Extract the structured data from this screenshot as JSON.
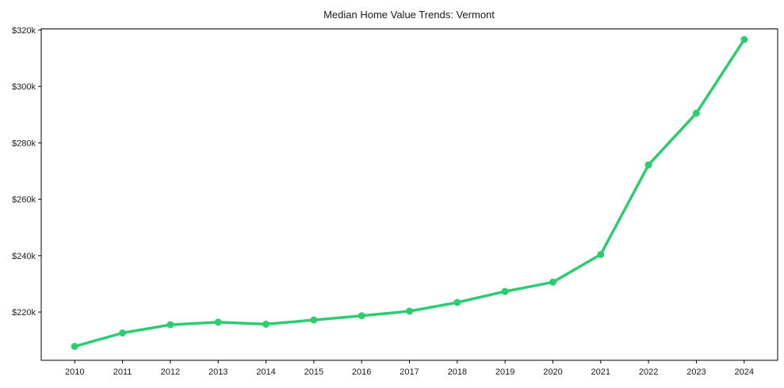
{
  "chart_data": {
    "type": "line",
    "title": "Median Home Value Trends: Vermont",
    "xlabel": "",
    "ylabel": "",
    "x": [
      2010,
      2011,
      2012,
      2013,
      2014,
      2015,
      2016,
      2017,
      2018,
      2019,
      2020,
      2021,
      2022,
      2023,
      2024
    ],
    "x_tick_labels": [
      "2010",
      "2011",
      "2012",
      "2013",
      "2014",
      "2015",
      "2016",
      "2017",
      "2018",
      "2019",
      "2020",
      "2021",
      "2022",
      "2023",
      "2024"
    ],
    "series": [
      {
        "values": [
          207.8,
          212.6,
          215.5,
          216.4,
          215.7,
          217.2,
          218.7,
          220.3,
          223.4,
          227.3,
          230.6,
          240.4,
          272.2,
          290.5,
          316.6
        ],
        "unit": "thousand dollars"
      }
    ],
    "y_ticks": {
      "values": [
        220,
        240,
        260,
        280,
        300,
        320
      ],
      "labels": [
        "$220k",
        "$240k",
        "$260k",
        "$280k",
        "$300k",
        "$320k"
      ]
    },
    "xlim": [
      2009.3,
      2024.7
    ],
    "ylim": [
      202.9,
      320.4
    ],
    "grid": false,
    "legend": false,
    "line_color": "#2ecc71",
    "marker": "circle",
    "frame_color": "#000000",
    "background_color": "#ffffff"
  }
}
